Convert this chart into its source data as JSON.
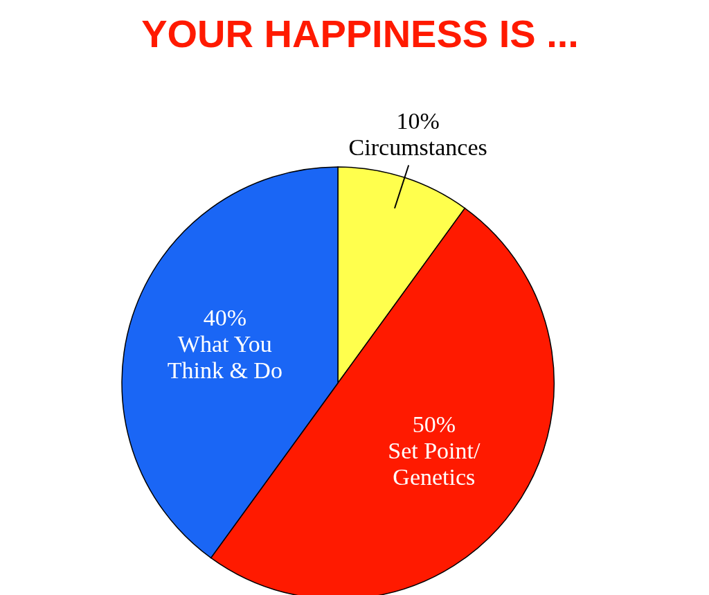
{
  "chart_data": {
    "type": "pie",
    "title": "YOUR HAPPINESS IS ...",
    "categories": [
      "Circumstances",
      "Set Point/\nGenetics",
      "What You\nThink & Do"
    ],
    "values": [
      10,
      50,
      40
    ],
    "colors": [
      "#ffff4d",
      "#ff1a00",
      "#1a66f5"
    ],
    "value_labels": [
      "10%",
      "50%",
      "40%"
    ]
  }
}
